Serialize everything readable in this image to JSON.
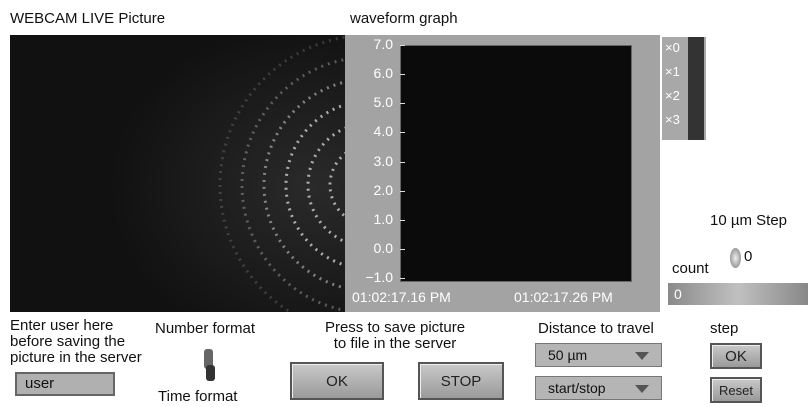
{
  "header": {
    "camera_title": "WEBCAM LIVE Picture",
    "graph_title": "waveform graph"
  },
  "graph": {
    "y_ticks": [
      "7.0",
      "6.0",
      "5.0",
      "4.0",
      "3.0",
      "2.0",
      "1.0",
      "0.0",
      "−1.0"
    ],
    "x_labels": [
      "01:02:17.16 PM",
      "01:02:17.26 PM"
    ],
    "plot_legend": [
      "×0",
      "×1",
      "×2",
      "×3"
    ]
  },
  "step_control": {
    "label": "10 µm Step",
    "value": "0"
  },
  "count": {
    "label": "count",
    "value": "0"
  },
  "user": {
    "lines": [
      "Enter user here",
      "before saving the",
      "picture in the server"
    ],
    "value": "user"
  },
  "format": {
    "top": "Number format",
    "bottom": "Time format"
  },
  "save": {
    "lines": [
      "Press to save picture",
      "to file in the server"
    ],
    "ok": "OK",
    "stop": "STOP"
  },
  "travel": {
    "label": "Distance to travel",
    "distance": "50 µm",
    "mode": "start/stop"
  },
  "step": {
    "label": "step",
    "ok": "OK",
    "reset": "Reset"
  }
}
